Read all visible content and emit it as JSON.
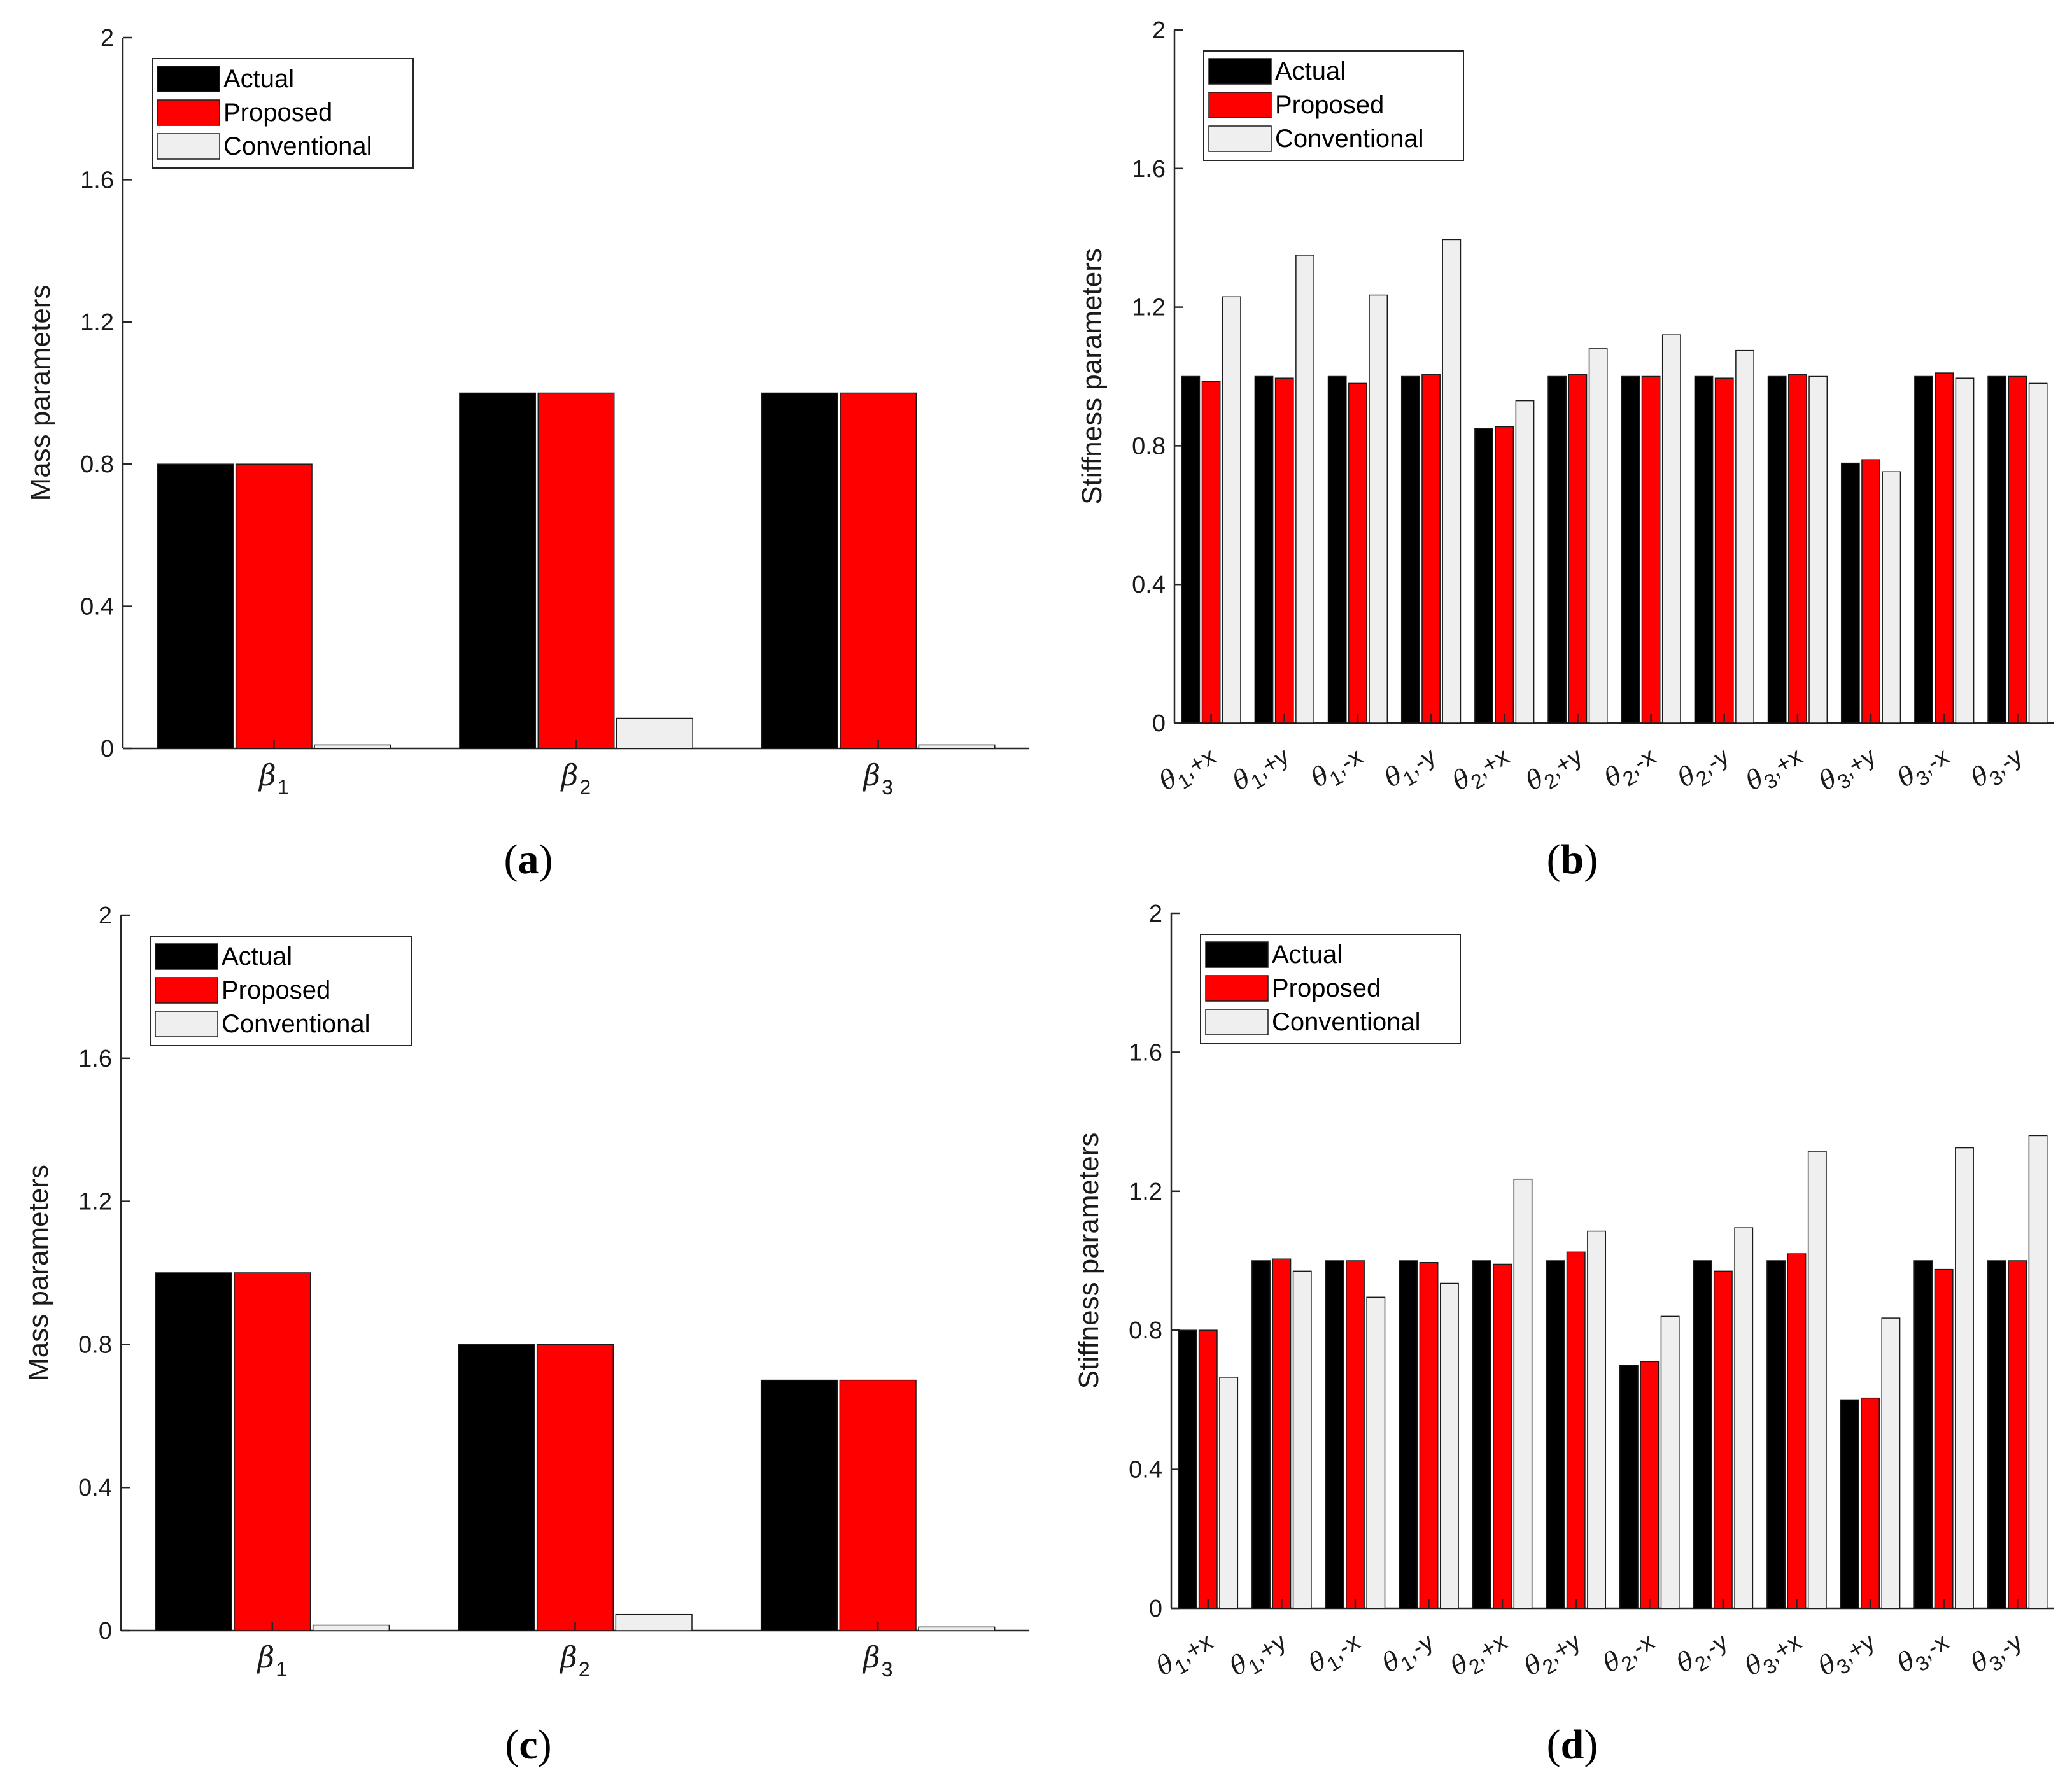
{
  "figure_labels": {
    "a": {
      "open": "(",
      "letter": "a",
      "close": ")"
    },
    "b": {
      "open": "(",
      "letter": "b",
      "close": ")"
    },
    "c": {
      "open": "(",
      "letter": "c",
      "close": ")"
    },
    "d": {
      "open": "(",
      "letter": "d",
      "close": ")"
    }
  },
  "colors": {
    "actual": "#000000",
    "proposed": "#ff0000",
    "conventional": "#efefef"
  },
  "chart_data": [
    {
      "id": "a",
      "type": "bar",
      "ylabel": "Mass parameters",
      "ylim": [
        0,
        2
      ],
      "yticks": [
        "0",
        "0.4",
        "0.8",
        "1.2",
        "1.6",
        "2"
      ],
      "categories": [
        {
          "symbol": "β",
          "sub": "1"
        },
        {
          "symbol": "β",
          "sub": "2"
        },
        {
          "symbol": "β",
          "sub": "3"
        }
      ],
      "series": [
        {
          "name": "Actual",
          "values": [
            0.8,
            1.0,
            1.0
          ]
        },
        {
          "name": "Proposed",
          "values": [
            0.8,
            1.0,
            1.0
          ]
        },
        {
          "name": "Conventional",
          "values": [
            0.01,
            0.085,
            0.01
          ]
        }
      ],
      "legend": "top-left"
    },
    {
      "id": "b",
      "type": "bar",
      "ylabel": "Stiffness parameters",
      "ylim": [
        0,
        2
      ],
      "yticks": [
        "0",
        "0.4",
        "0.8",
        "1.2",
        "1.6",
        "2"
      ],
      "categories": [
        {
          "symbol": "θ",
          "sub": "1",
          "suffix": ",+x"
        },
        {
          "symbol": "θ",
          "sub": "1",
          "suffix": ",+y"
        },
        {
          "symbol": "θ",
          "sub": "1",
          "suffix": ",-x"
        },
        {
          "symbol": "θ",
          "sub": "1",
          "suffix": ",-y"
        },
        {
          "symbol": "θ",
          "sub": "2",
          "suffix": ",+x"
        },
        {
          "symbol": "θ",
          "sub": "2",
          "suffix": ",+y"
        },
        {
          "symbol": "θ",
          "sub": "2",
          "suffix": ",-x"
        },
        {
          "symbol": "θ",
          "sub": "2",
          "suffix": ",-y"
        },
        {
          "symbol": "θ",
          "sub": "3",
          "suffix": ",+x"
        },
        {
          "symbol": "θ",
          "sub": "3",
          "suffix": ",+y"
        },
        {
          "symbol": "θ",
          "sub": "3",
          "suffix": ",-x"
        },
        {
          "symbol": "θ",
          "sub": "3",
          "suffix": ",-y"
        }
      ],
      "series": [
        {
          "name": "Actual",
          "values": [
            1.0,
            1.0,
            1.0,
            1.0,
            0.85,
            1.0,
            1.0,
            1.0,
            1.0,
            0.75,
            1.0,
            1.0
          ]
        },
        {
          "name": "Proposed",
          "values": [
            0.985,
            0.995,
            0.98,
            1.005,
            0.855,
            1.005,
            1.0,
            0.995,
            1.005,
            0.76,
            1.01,
            1.0
          ]
        },
        {
          "name": "Conventional",
          "values": [
            1.23,
            1.35,
            1.235,
            1.395,
            0.93,
            1.08,
            1.12,
            1.075,
            1.0,
            0.725,
            0.995,
            0.98
          ]
        }
      ],
      "legend": "top-left"
    },
    {
      "id": "c",
      "type": "bar",
      "ylabel": "Mass parameters",
      "ylim": [
        0,
        2
      ],
      "yticks": [
        "0",
        "0.4",
        "0.8",
        "1.2",
        "1.6",
        "2"
      ],
      "categories": [
        {
          "symbol": "β",
          "sub": "1"
        },
        {
          "symbol": "β",
          "sub": "2"
        },
        {
          "symbol": "β",
          "sub": "3"
        }
      ],
      "series": [
        {
          "name": "Actual",
          "values": [
            1.0,
            0.8,
            0.7
          ]
        },
        {
          "name": "Proposed",
          "values": [
            1.0,
            0.8,
            0.7
          ]
        },
        {
          "name": "Conventional",
          "values": [
            0.015,
            0.045,
            0.01
          ]
        }
      ],
      "legend": "top-left"
    },
    {
      "id": "d",
      "type": "bar",
      "ylabel": "Stiffness parameters",
      "ylim": [
        0,
        2
      ],
      "yticks": [
        "0",
        "0.4",
        "0.8",
        "1.2",
        "1.6",
        "2"
      ],
      "categories": [
        {
          "symbol": "θ",
          "sub": "1",
          "suffix": ",+x"
        },
        {
          "symbol": "θ",
          "sub": "1",
          "suffix": ",+y"
        },
        {
          "symbol": "θ",
          "sub": "1",
          "suffix": ",-x"
        },
        {
          "symbol": "θ",
          "sub": "1",
          "suffix": ",-y"
        },
        {
          "symbol": "θ",
          "sub": "2",
          "suffix": ",+x"
        },
        {
          "symbol": "θ",
          "sub": "2",
          "suffix": ",+y"
        },
        {
          "symbol": "θ",
          "sub": "2",
          "suffix": ",-x"
        },
        {
          "symbol": "θ",
          "sub": "2",
          "suffix": ",-y"
        },
        {
          "symbol": "θ",
          "sub": "3",
          "suffix": ",+x"
        },
        {
          "symbol": "θ",
          "sub": "3",
          "suffix": ",+y"
        },
        {
          "symbol": "θ",
          "sub": "3",
          "suffix": ",-x"
        },
        {
          "symbol": "θ",
          "sub": "3",
          "suffix": ",-y"
        }
      ],
      "series": [
        {
          "name": "Actual",
          "values": [
            0.8,
            1.0,
            1.0,
            1.0,
            1.0,
            1.0,
            0.7,
            1.0,
            1.0,
            0.6,
            1.0,
            1.0
          ]
        },
        {
          "name": "Proposed",
          "values": [
            0.8,
            1.005,
            1.0,
            0.995,
            0.99,
            1.025,
            0.71,
            0.97,
            1.02,
            0.605,
            0.975,
            1.0
          ]
        },
        {
          "name": "Conventional",
          "values": [
            0.665,
            0.97,
            0.895,
            0.935,
            1.235,
            1.085,
            0.84,
            1.095,
            1.315,
            0.835,
            1.325,
            1.36
          ]
        }
      ],
      "legend": "top-left"
    }
  ]
}
